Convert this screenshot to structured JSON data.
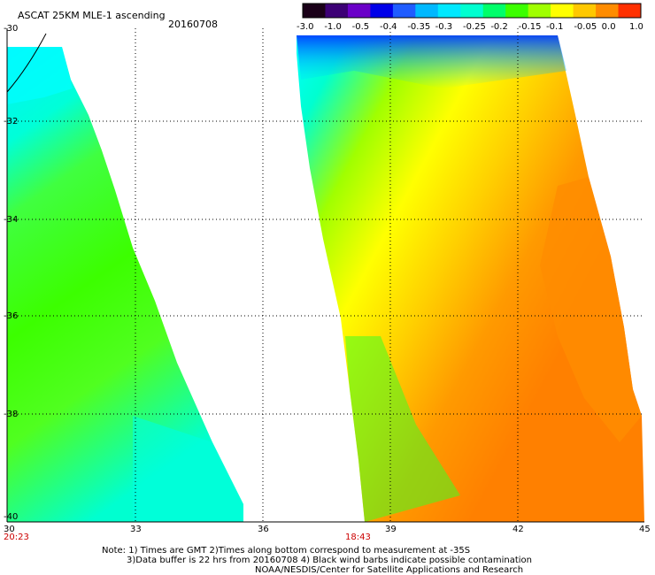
{
  "header": {
    "title": "ASCAT 25KM MLE-1 ascending",
    "date": "20160708"
  },
  "colorbar": {
    "colors": [
      "#1a0018",
      "#3c0075",
      "#6a00c8",
      "#0000e8",
      "#1f5cff",
      "#00b8ff",
      "#00e8ff",
      "#00ffd0",
      "#00ff6a",
      "#3cff00",
      "#a0ff00",
      "#ffff00",
      "#ffc800",
      "#ff8c00",
      "#ff3000"
    ],
    "ticks": [
      "-3.0",
      "-1.0",
      "-0.5",
      "-0.4",
      "-0.35",
      "-0.3",
      "-0.25",
      "-0.2",
      "-0.15",
      "-0.1",
      "-0.05",
      "0.0",
      "1.0"
    ]
  },
  "axes": {
    "y_labels": [
      "-30",
      "-32",
      "-34",
      "-36",
      "-38",
      "-40"
    ],
    "x_labels": [
      "30",
      "33",
      "36",
      "39",
      "42",
      "45"
    ]
  },
  "pass_times": [
    "20:23",
    "18:43"
  ],
  "notes": [
    "Note: 1) Times are GMT 2)Times along bottom correspond to measurement at -35S",
    "3)Data buffer is 22 hrs from 20160708 4) Black wind barbs indicate possible contamination",
    "NOAA/NESDIS/Center for Satellite Applications and Research"
  ]
}
